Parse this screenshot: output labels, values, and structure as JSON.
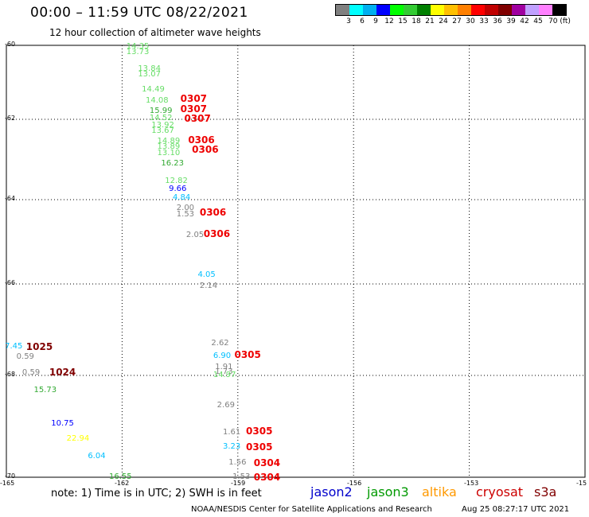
{
  "header": {
    "title": "00:00 – 11:59 UTC 08/22/2021",
    "subtitle": "12 hour collection of altimeter wave heights"
  },
  "color_scale": {
    "colors": [
      "#808080",
      "#00ffff",
      "#00b0f0",
      "#0000ff",
      "#00ff00",
      "#33cc33",
      "#008000",
      "#ffff00",
      "#ffc000",
      "#ff8000",
      "#ff0000",
      "#c00000",
      "#800000",
      "#a000a0",
      "#c0a0ff",
      "#ff80ff",
      "#000000"
    ],
    "labels": [
      "3",
      "6",
      "9",
      "12",
      "15",
      "18",
      "21",
      "24",
      "27",
      "30",
      "33",
      "36",
      "39",
      "42",
      "45",
      "70 (ft)"
    ]
  },
  "map": {
    "lat_labels": [
      "-60",
      "-62",
      "-64",
      "-66",
      "-68",
      "-70"
    ],
    "lon_labels": [
      "-165",
      "-162",
      "-159",
      "-156",
      "-153",
      "-15"
    ],
    "lat_range": [
      -70,
      -60
    ],
    "lon_range": [
      -165,
      -150
    ]
  },
  "swh_values": [
    {
      "text": "14.35",
      "lon": -161.6,
      "lat": -60.05,
      "color": "#66dd66"
    },
    {
      "text": "13.73",
      "lon": -161.6,
      "lat": -60.2,
      "color": "#66dd66"
    },
    {
      "text": "13.84",
      "lon": -161.3,
      "lat": -60.65,
      "color": "#66dd66"
    },
    {
      "text": "13.07",
      "lon": -161.3,
      "lat": -60.8,
      "color": "#66dd66"
    },
    {
      "text": "14.49",
      "lon": -161.2,
      "lat": -61.2,
      "color": "#66dd66"
    },
    {
      "text": "14.08",
      "lon": -161.1,
      "lat": -61.5,
      "color": "#66dd66"
    },
    {
      "text": "15.99",
      "lon": -161.0,
      "lat": -61.78,
      "color": "#33aa33"
    },
    {
      "text": "14.52",
      "lon": -161.0,
      "lat": -61.98,
      "color": "#66dd66"
    },
    {
      "text": "13.92",
      "lon": -160.95,
      "lat": -62.15,
      "color": "#66dd66"
    },
    {
      "text": "13.67",
      "lon": -160.95,
      "lat": -62.3,
      "color": "#66dd66"
    },
    {
      "text": "14.89",
      "lon": -160.8,
      "lat": -62.55,
      "color": "#66dd66"
    },
    {
      "text": "13.89",
      "lon": -160.8,
      "lat": -62.7,
      "color": "#66dd66"
    },
    {
      "text": "13.10",
      "lon": -160.8,
      "lat": -62.85,
      "color": "#66dd66"
    },
    {
      "text": "16.23",
      "lon": -160.7,
      "lat": -63.1,
      "color": "#33aa33"
    },
    {
      "text": "12.82",
      "lon": -160.6,
      "lat": -63.55,
      "color": "#66dd66"
    },
    {
      "text": "9.66",
      "lon": -160.5,
      "lat": -63.75,
      "color": "#0000ff"
    },
    {
      "text": "4.84",
      "lon": -160.4,
      "lat": -63.97,
      "color": "#00bfff"
    },
    {
      "text": "2.00",
      "lon": -160.3,
      "lat": -64.2,
      "color": "#808080"
    },
    {
      "text": "1.53",
      "lon": -160.3,
      "lat": -64.35,
      "color": "#808080"
    },
    {
      "text": "2.05",
      "lon": -160.05,
      "lat": -64.85,
      "color": "#808080"
    },
    {
      "text": "4.05",
      "lon": -159.75,
      "lat": -65.8,
      "color": "#00bfff"
    },
    {
      "text": "2.14",
      "lon": -159.7,
      "lat": -66.05,
      "color": "#808080"
    },
    {
      "text": "2.62",
      "lon": -159.4,
      "lat": -67.3,
      "color": "#808080"
    },
    {
      "text": "6.90",
      "lon": -159.35,
      "lat": -67.58,
      "color": "#00bfff"
    },
    {
      "text": "1.91",
      "lon": -159.3,
      "lat": -67.83,
      "color": "#808080"
    },
    {
      "text": "1.73",
      "lon": -159.3,
      "lat": -67.93,
      "color": "#808080"
    },
    {
      "text": "14.97",
      "lon": -159.35,
      "lat": -68.0,
      "color": "#66dd66"
    },
    {
      "text": "2.69",
      "lon": -159.25,
      "lat": -68.6,
      "color": "#808080"
    },
    {
      "text": "1.61",
      "lon": -159.1,
      "lat": -69.12,
      "color": "#808080"
    },
    {
      "text": "3.23",
      "lon": -159.1,
      "lat": -69.4,
      "color": "#00bfff"
    },
    {
      "text": "1.56",
      "lon": -158.95,
      "lat": -69.72,
      "color": "#808080"
    },
    {
      "text": "1.53",
      "lon": -158.85,
      "lat": -70.05,
      "color": "#808080"
    },
    {
      "text": "7.45",
      "lon": -164.75,
      "lat": -67.38,
      "color": "#00bfff"
    },
    {
      "text": "0.59",
      "lon": -164.45,
      "lat": -67.6,
      "color": "#808080"
    },
    {
      "text": "0.59",
      "lon": -164.3,
      "lat": -67.95,
      "color": "#808080"
    },
    {
      "text": "15.73",
      "lon": -164.0,
      "lat": -68.3,
      "color": "#33aa33"
    },
    {
      "text": "10.75",
      "lon": -163.55,
      "lat": -68.95,
      "color": "#0000ff"
    },
    {
      "text": "22.94",
      "lon": -163.15,
      "lat": -69.25,
      "color": "#ffff00"
    },
    {
      "text": "6.04",
      "lon": -162.6,
      "lat": -69.6,
      "color": "#00bfff"
    },
    {
      "text": "16.55",
      "lon": -162.05,
      "lat": -70.1,
      "color": "#33aa33"
    }
  ],
  "time_labels": [
    {
      "text": "0307",
      "lon": -160.2,
      "lat": -61.45,
      "color": "#ee0000"
    },
    {
      "text": "0307",
      "lon": -160.2,
      "lat": -61.72,
      "color": "#ee0000"
    },
    {
      "text": "0307",
      "lon": -160.1,
      "lat": -61.98,
      "color": "#ee0000"
    },
    {
      "text": "0306",
      "lon": -160.0,
      "lat": -62.52,
      "color": "#ee0000"
    },
    {
      "text": "0306",
      "lon": -159.9,
      "lat": -62.75,
      "color": "#ee0000"
    },
    {
      "text": "0306",
      "lon": -159.7,
      "lat": -64.3,
      "color": "#ee0000"
    },
    {
      "text": "0306",
      "lon": -159.6,
      "lat": -64.82,
      "color": "#ee0000"
    },
    {
      "text": "0305",
      "lon": -158.8,
      "lat": -67.55,
      "color": "#ee0000"
    },
    {
      "text": "0305",
      "lon": -158.5,
      "lat": -69.1,
      "color": "#ee0000"
    },
    {
      "text": "0305",
      "lon": -158.5,
      "lat": -69.4,
      "color": "#ee0000"
    },
    {
      "text": "0304",
      "lon": -158.3,
      "lat": -69.72,
      "color": "#ee0000"
    },
    {
      "text": "0304",
      "lon": -158.3,
      "lat": -70.05,
      "color": "#ee0000"
    },
    {
      "text": "1025",
      "lon": -164.2,
      "lat": -67.37,
      "color": "#800000"
    },
    {
      "text": "1024",
      "lon": -163.6,
      "lat": -67.93,
      "color": "#800000"
    }
  ],
  "footer": {
    "note": "note: 1) Time is in UTC; 2) SWH is in feet",
    "satellites": [
      {
        "label": "jason2",
        "color": "#0000cc"
      },
      {
        "label": "jason3",
        "color": "#009900"
      },
      {
        "label": "altika",
        "color": "#ff9900"
      },
      {
        "label": "cryosat",
        "color": "#cc0000"
      },
      {
        "label": "s3a",
        "color": "#800000"
      }
    ],
    "credit": "NOAA/NESDIS Center for Satellite Applications and Research",
    "timestamp": "Aug 25 08:27:17 UTC 2021"
  }
}
